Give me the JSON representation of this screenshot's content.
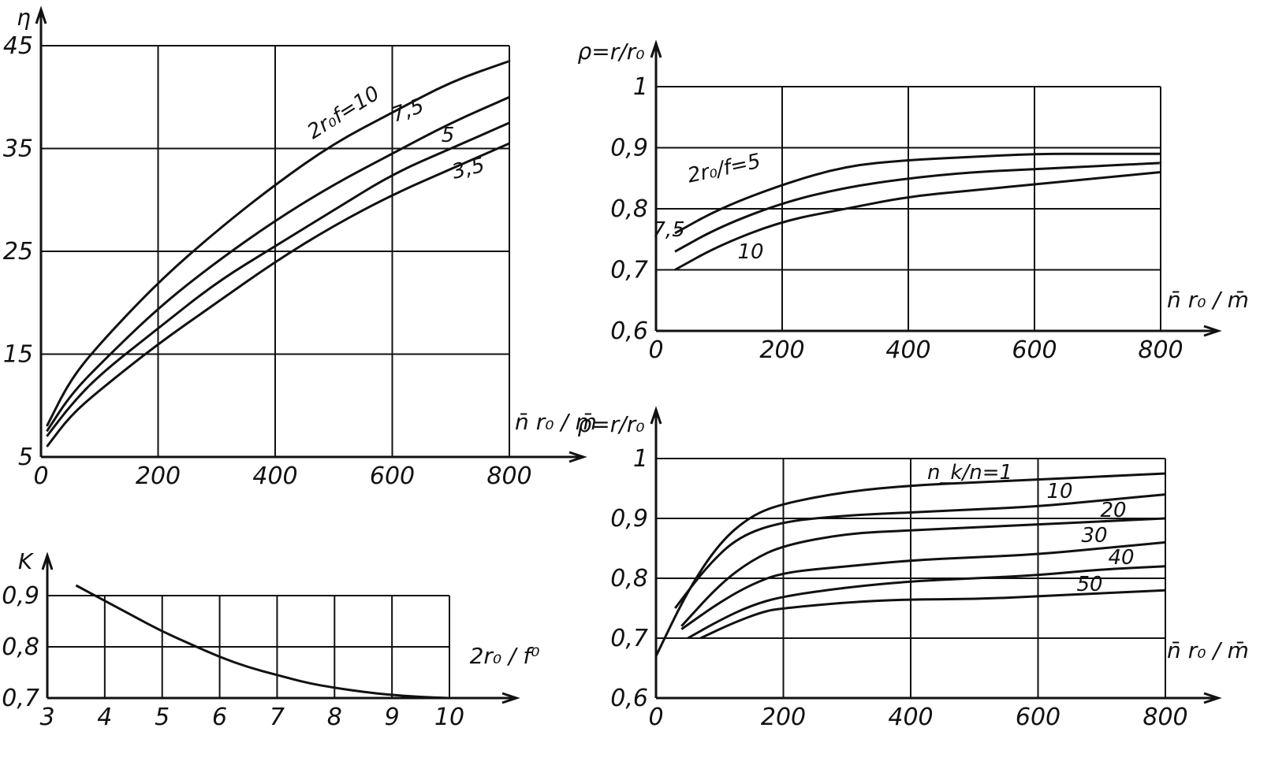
{
  "chart_data": [
    {
      "id": "eta",
      "type": "line",
      "ylabel": "η",
      "xlabel": "n̄ r₀ / m̄",
      "xticks": [
        "0",
        "200",
        "400",
        "600",
        "800"
      ],
      "yticks": [
        "5",
        "15",
        "25",
        "35",
        "45"
      ],
      "xlim": [
        0,
        800
      ],
      "ylim": [
        5,
        45
      ],
      "grid": true,
      "series": [
        {
          "name": "2r₀/f=10",
          "label": "2r₀f=10",
          "x": [
            10,
            50,
            100,
            200,
            300,
            400,
            500,
            600,
            700,
            800
          ],
          "values": [
            8,
            12.5,
            16,
            22,
            27,
            31.5,
            35.5,
            38.5,
            41.5,
            43.5
          ]
        },
        {
          "name": "7,5",
          "label": "7,5",
          "x": [
            10,
            50,
            100,
            200,
            300,
            400,
            500,
            600,
            700,
            800
          ],
          "values": [
            7.5,
            11,
            14,
            19.5,
            24,
            28,
            31.5,
            34.5,
            37.5,
            40
          ]
        },
        {
          "name": "5",
          "label": "5",
          "x": [
            10,
            50,
            100,
            200,
            300,
            400,
            500,
            600,
            700,
            800
          ],
          "values": [
            7,
            10,
            13,
            17.5,
            22,
            25.5,
            29,
            32.5,
            35,
            37.5
          ]
        },
        {
          "name": "3,5",
          "label": "3,5",
          "x": [
            10,
            50,
            100,
            200,
            300,
            400,
            500,
            600,
            700,
            800
          ],
          "values": [
            6,
            9,
            11.5,
            16,
            20,
            24,
            27.5,
            30.5,
            33,
            35.5
          ]
        }
      ]
    },
    {
      "id": "rho_f",
      "type": "line",
      "ylabel": "ρ=r/r₀",
      "xlabel": "n̄ r₀ / m̄",
      "xticks": [
        "0",
        "200",
        "400",
        "600",
        "800"
      ],
      "yticks": [
        "0,6",
        "0,7",
        "0,8",
        "0,9",
        "1"
      ],
      "xlim": [
        0,
        800
      ],
      "ylim": [
        0.6,
        1.0
      ],
      "grid": true,
      "series": [
        {
          "name": "2r₀/f=5",
          "label": "2r₀/f=5",
          "x": [
            30,
            100,
            200,
            300,
            400,
            500,
            600,
            700,
            800
          ],
          "values": [
            0.76,
            0.8,
            0.84,
            0.87,
            0.88,
            0.885,
            0.89,
            0.89,
            0.89
          ]
        },
        {
          "name": "7,5",
          "label": "7,5",
          "x": [
            30,
            100,
            200,
            300,
            400,
            500,
            600,
            700,
            800
          ],
          "values": [
            0.73,
            0.77,
            0.81,
            0.835,
            0.85,
            0.86,
            0.865,
            0.87,
            0.875
          ]
        },
        {
          "name": "10",
          "label": "10",
          "x": [
            30,
            100,
            200,
            300,
            400,
            500,
            600,
            700,
            800
          ],
          "values": [
            0.7,
            0.74,
            0.78,
            0.8,
            0.82,
            0.83,
            0.84,
            0.85,
            0.86
          ]
        }
      ]
    },
    {
      "id": "rho_n",
      "type": "line",
      "ylabel": "ρ=r/r₀",
      "xlabel": "n̄ r₀ / m̄",
      "xticks": [
        "0",
        "200",
        "400",
        "600",
        "800"
      ],
      "yticks": [
        "0,6",
        "0,7",
        "0,8",
        "0,9",
        "1"
      ],
      "xlim": [
        0,
        800
      ],
      "ylim": [
        0.6,
        1.0
      ],
      "grid": true,
      "series": [
        {
          "name": "n_k/n=1",
          "label": "n_k/n=1",
          "x": [
            0,
            50,
            100,
            150,
            200,
            300,
            400,
            500,
            600,
            700,
            800
          ],
          "values": [
            0.67,
            0.78,
            0.86,
            0.905,
            0.925,
            0.945,
            0.955,
            0.96,
            0.965,
            0.97,
            0.975
          ]
        },
        {
          "name": "10",
          "label": "10",
          "x": [
            30,
            80,
            130,
            200,
            300,
            400,
            500,
            600,
            700,
            800
          ],
          "values": [
            0.75,
            0.82,
            0.87,
            0.895,
            0.905,
            0.91,
            0.915,
            0.92,
            0.93,
            0.94
          ]
        },
        {
          "name": "20",
          "label": "20",
          "x": [
            40,
            100,
            150,
            200,
            300,
            400,
            500,
            600,
            700,
            800
          ],
          "values": [
            0.72,
            0.79,
            0.83,
            0.855,
            0.875,
            0.88,
            0.885,
            0.89,
            0.895,
            0.9
          ]
        },
        {
          "name": "30",
          "label": "30",
          "x": [
            40,
            100,
            150,
            200,
            300,
            400,
            500,
            600,
            700,
            800
          ],
          "values": [
            0.715,
            0.76,
            0.79,
            0.81,
            0.82,
            0.83,
            0.835,
            0.84,
            0.85,
            0.86
          ]
        },
        {
          "name": "40",
          "label": "40",
          "x": [
            50,
            100,
            150,
            200,
            300,
            400,
            500,
            600,
            700,
            800
          ],
          "values": [
            0.7,
            0.73,
            0.755,
            0.77,
            0.785,
            0.795,
            0.8,
            0.805,
            0.815,
            0.82
          ]
        },
        {
          "name": "50",
          "label": "50",
          "x": [
            70,
            120,
            170,
            200,
            300,
            400,
            500,
            600,
            700,
            800
          ],
          "values": [
            0.7,
            0.725,
            0.745,
            0.75,
            0.76,
            0.765,
            0.765,
            0.77,
            0.775,
            0.78
          ]
        }
      ]
    },
    {
      "id": "kappa",
      "type": "line",
      "ylabel": "K",
      "xlabel": "2r₀ / f⁰",
      "xticks": [
        "3",
        "4",
        "5",
        "6",
        "7",
        "8",
        "9",
        "10"
      ],
      "yticks": [
        "0,7",
        "0,8",
        "0,9"
      ],
      "xlim": [
        3,
        10
      ],
      "ylim": [
        0.7,
        0.9
      ],
      "grid": true,
      "series": [
        {
          "name": "K",
          "label": "",
          "x": [
            3.5,
            4,
            4.5,
            5,
            5.5,
            6,
            6.5,
            7,
            7.5,
            8,
            8.5,
            9,
            9.5,
            10
          ],
          "values": [
            0.92,
            0.89,
            0.86,
            0.83,
            0.805,
            0.78,
            0.76,
            0.745,
            0.73,
            0.72,
            0.712,
            0.706,
            0.702,
            0.7
          ]
        }
      ]
    }
  ]
}
